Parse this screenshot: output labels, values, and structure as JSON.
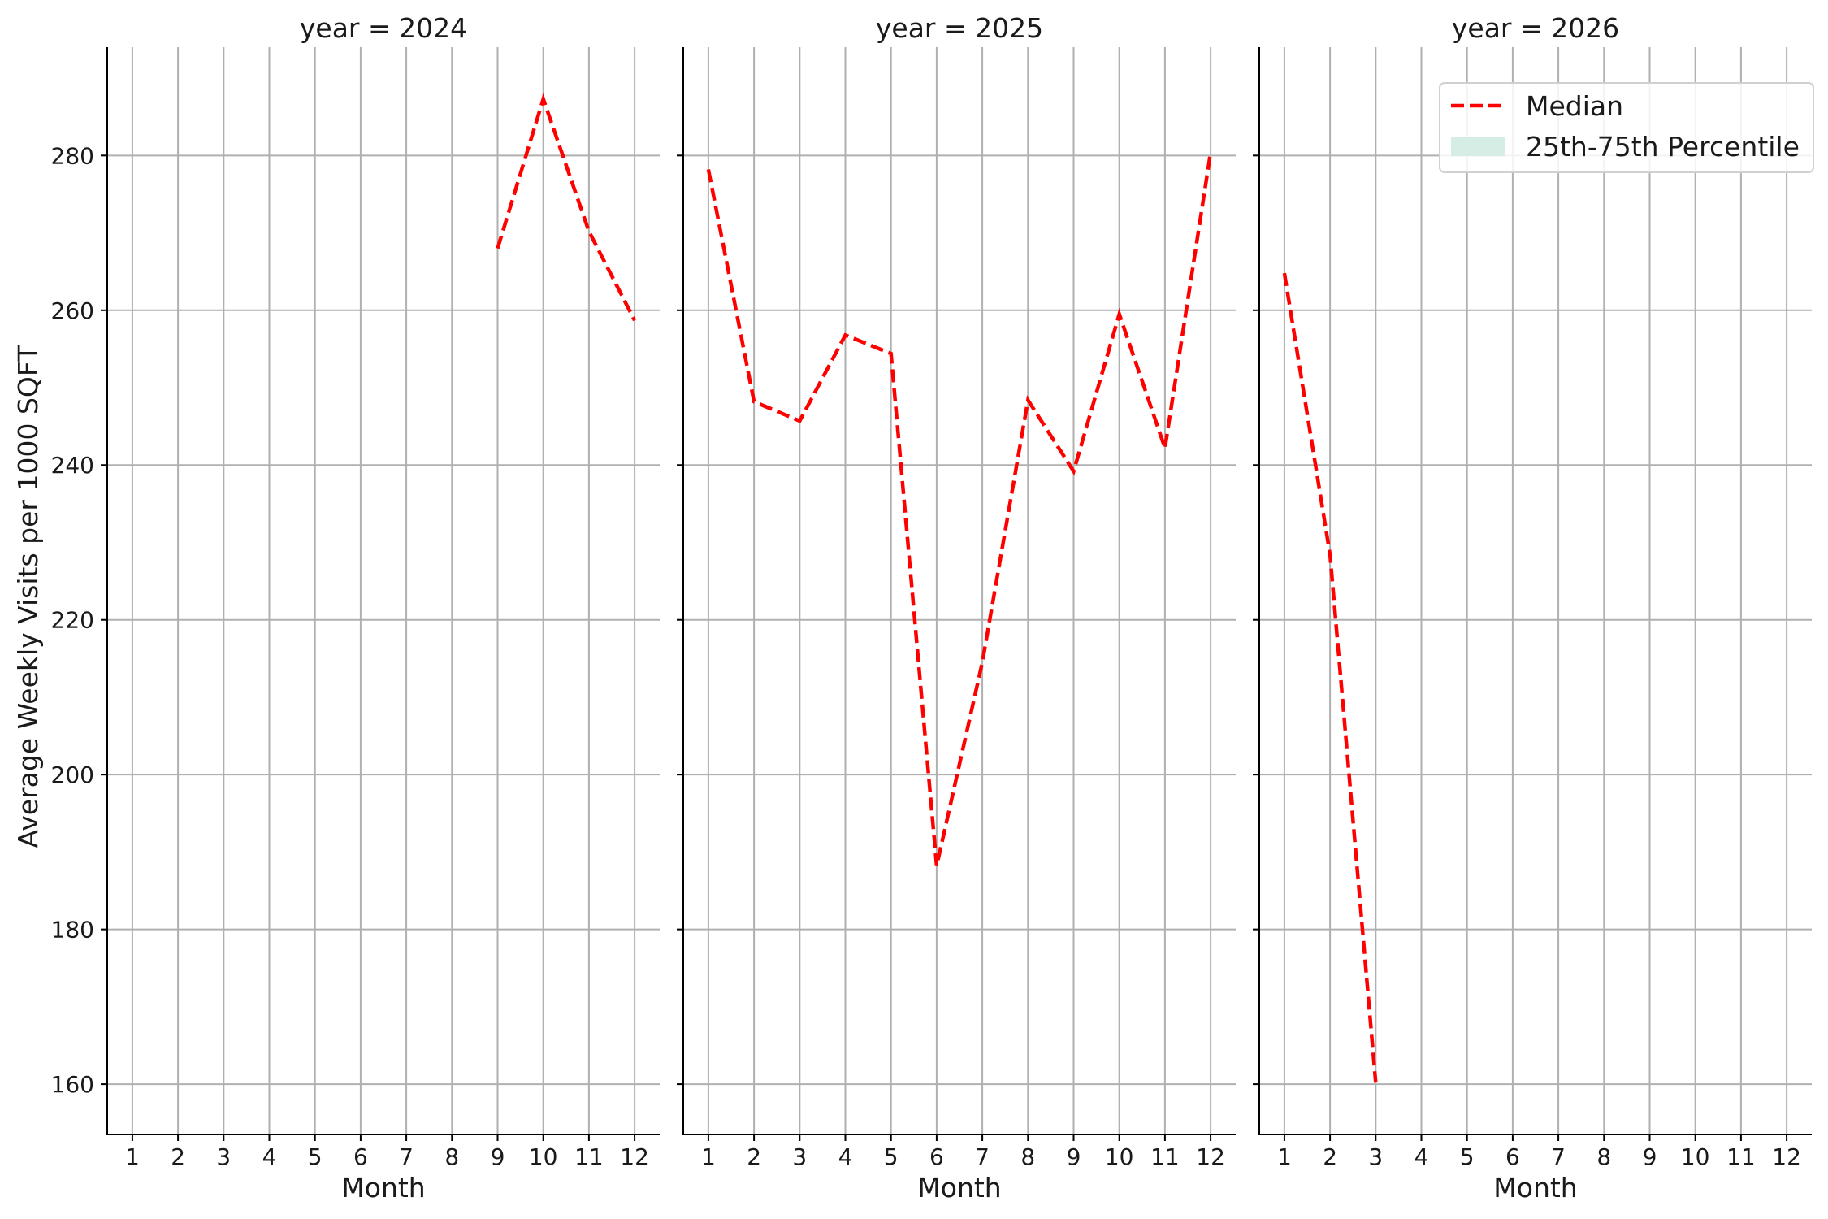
{
  "chart_data": {
    "type": "line",
    "facet_by": "year",
    "ylabel": "Average Weekly Visits per 1000 SQFT",
    "xlabel": "Month",
    "x_ticks": [
      1,
      2,
      3,
      4,
      5,
      6,
      7,
      8,
      9,
      10,
      11,
      12
    ],
    "y_ticks": [
      160,
      180,
      200,
      220,
      240,
      260,
      280
    ],
    "ylim": [
      153.5,
      294
    ],
    "xlim": [
      0.45,
      12.55
    ],
    "grid": true,
    "legend": {
      "placement": "top-right",
      "entries": [
        {
          "label": "Median",
          "color": "#ff0000",
          "style": "dashed-line"
        },
        {
          "label": "25th-75th Percentile",
          "color": "#d6ede6",
          "style": "filled-patch"
        }
      ]
    },
    "panels": [
      {
        "title": "year = 2024",
        "series": [
          {
            "name": "Median",
            "x": [
              9,
              10,
              11,
              12
            ],
            "y": [
              268.0,
              287.3,
              270.2,
              258.7
            ]
          }
        ]
      },
      {
        "title": "year = 2025",
        "series": [
          {
            "name": "Median",
            "x": [
              1,
              2,
              3,
              4,
              5,
              6,
              7,
              8,
              9,
              10,
              11,
              12
            ],
            "y": [
              278.2,
              248.2,
              245.7,
              256.8,
              254.4,
              188.2,
              214.5,
              248.4,
              239.2,
              259.5,
              242.2,
              280.4
            ]
          }
        ]
      },
      {
        "title": "year = 2026",
        "series": [
          {
            "name": "Median",
            "x": [
              1,
              2,
              3
            ],
            "y": [
              264.8,
              228.4,
              160.2
            ]
          }
        ]
      }
    ]
  }
}
